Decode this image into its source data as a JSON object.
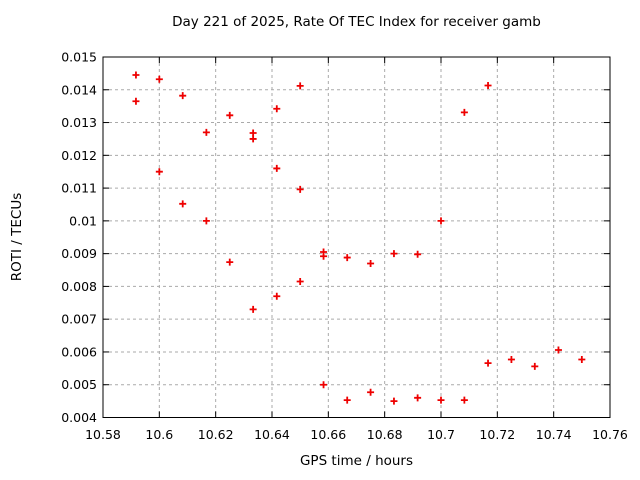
{
  "chart_data": {
    "type": "scatter",
    "title": "Day 221 of 2025, Rate Of TEC Index for receiver gamb",
    "xlabel": "GPS time / hours",
    "ylabel": "ROTI / TECUs",
    "xlim": [
      10.58,
      10.76
    ],
    "ylim": [
      0.004,
      0.015
    ],
    "xticks": [
      "10.58",
      "10.6",
      "10.62",
      "10.64",
      "10.66",
      "10.68",
      "10.7",
      "10.72",
      "10.74",
      "10.76"
    ],
    "yticks": [
      "0.004",
      "0.005",
      "0.006",
      "0.007",
      "0.008",
      "0.009",
      "0.01",
      "0.011",
      "0.012",
      "0.013",
      "0.014",
      "0.015"
    ],
    "grid": true,
    "legend": false,
    "marker": "plus",
    "marker_color": "#ee0000",
    "grid_color": "#aaaaaa",
    "frame_color": "#000000",
    "background_color": "#ffffff",
    "points": [
      [
        10.5917,
        0.01445
      ],
      [
        10.5917,
        0.01365
      ],
      [
        10.6,
        0.01432
      ],
      [
        10.6,
        0.0115
      ],
      [
        10.6083,
        0.01382
      ],
      [
        10.6083,
        0.01052
      ],
      [
        10.6167,
        0.0127
      ],
      [
        10.6167,
        0.01
      ],
      [
        10.625,
        0.01322
      ],
      [
        10.625,
        0.00874
      ],
      [
        10.6333,
        0.01268
      ],
      [
        10.6333,
        0.0125
      ],
      [
        10.6333,
        0.0073
      ],
      [
        10.6417,
        0.01342
      ],
      [
        10.6417,
        0.0116
      ],
      [
        10.6417,
        0.0077
      ],
      [
        10.65,
        0.01412
      ],
      [
        10.65,
        0.01096
      ],
      [
        10.65,
        0.00815
      ],
      [
        10.6583,
        0.00905
      ],
      [
        10.6583,
        0.00892
      ],
      [
        10.6583,
        0.005
      ],
      [
        10.6667,
        0.00888
      ],
      [
        10.6667,
        0.00453
      ],
      [
        10.675,
        0.0087
      ],
      [
        10.675,
        0.00477
      ],
      [
        10.6833,
        0.009
      ],
      [
        10.6833,
        0.0045
      ],
      [
        10.6917,
        0.00898
      ],
      [
        10.6917,
        0.0046
      ],
      [
        10.7,
        0.01
      ],
      [
        10.7,
        0.00453
      ],
      [
        10.7083,
        0.01331
      ],
      [
        10.7083,
        0.00453
      ],
      [
        10.7167,
        0.01413
      ],
      [
        10.7167,
        0.00566
      ],
      [
        10.725,
        0.00577
      ],
      [
        10.7333,
        0.00556
      ],
      [
        10.7417,
        0.00606
      ],
      [
        10.75,
        0.00577
      ]
    ]
  }
}
